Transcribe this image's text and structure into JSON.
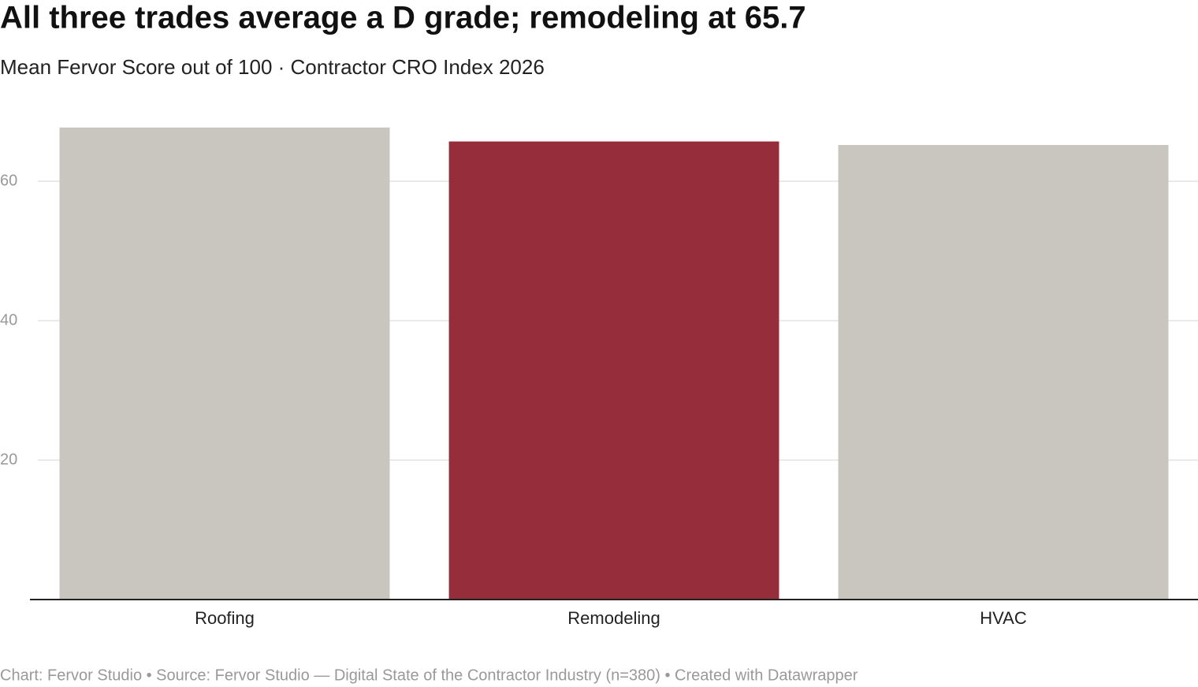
{
  "chart_data": {
    "type": "bar",
    "title": "All three trades average a D grade; remodeling at 65.7",
    "subtitle": "Mean Fervor Score out of 100 · Contractor CRO Index 2026",
    "source": "Chart: Fervor Studio • Source: Fervor Studio — Digital State of the Contractor Industry (n=380) • Created with Datawrapper",
    "categories": [
      "Roofing",
      "Remodeling",
      "HVAC"
    ],
    "values": [
      67.7,
      65.7,
      65.2
    ],
    "colors": [
      "#c9c6bf",
      "#952d3a",
      "#c9c6bf"
    ],
    "ylim": [
      0,
      70
    ],
    "yticks": [
      20,
      40,
      60
    ],
    "grid": true
  }
}
